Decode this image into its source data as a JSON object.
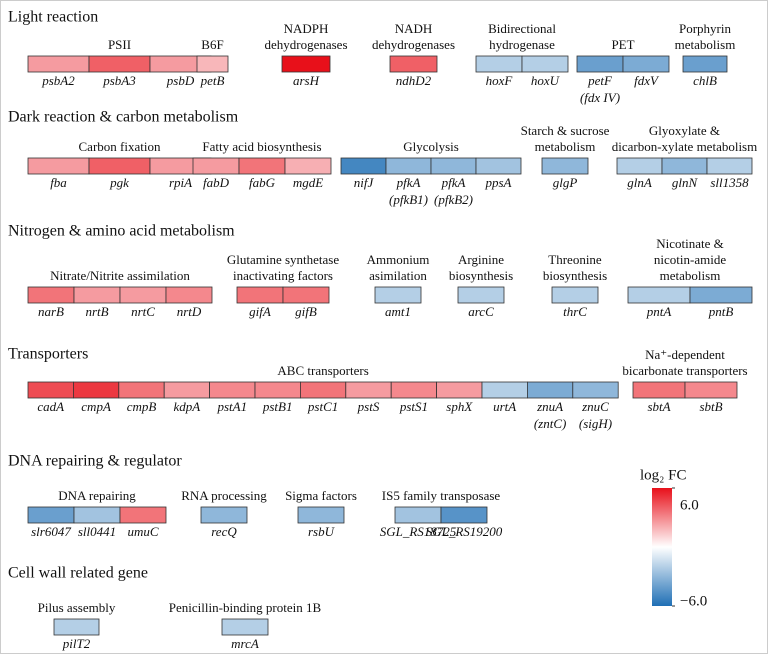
{
  "sections": [
    {
      "title": "Light reaction",
      "groups": [
        {
          "name": [
            "PSII"
          ],
          "genes": [
            {
              "label": "psbA2",
              "value": 2.5
            },
            {
              "label": "psbA3",
              "value": 4
            },
            {
              "label": "psbD",
              "value": 2.5
            }
          ]
        },
        {
          "name": [
            "B6F"
          ],
          "genes": [
            {
              "label": "petB",
              "value": 1.8
            }
          ]
        },
        {
          "name": [
            "NADPH",
            "dehydrogenases"
          ],
          "genes": [
            {
              "label": "arsH",
              "value": 6
            }
          ]
        },
        {
          "name": [
            "NADH",
            "dehydrogenases"
          ],
          "genes": [
            {
              "label": "ndhD2",
              "value": 4
            }
          ]
        },
        {
          "name": [
            "Bidirectional",
            "hydrogenase"
          ],
          "genes": [
            {
              "label": "hoxF",
              "value": -2
            },
            {
              "label": "hoxU",
              "value": -2
            }
          ]
        },
        {
          "name": [
            "PET"
          ],
          "genes": [
            {
              "label": "petF",
              "note": "(fdx IV)",
              "value": -4
            },
            {
              "label": "fdxV",
              "value": -3.5
            }
          ]
        },
        {
          "name": [
            "Porphyrin",
            "metabolism"
          ],
          "genes": [
            {
              "label": "chlB",
              "value": -4
            }
          ]
        }
      ]
    },
    {
      "title": "Dark reaction & carbon metabolism",
      "groups": [
        {
          "name": [
            "Carbon fixation"
          ],
          "genes": [
            {
              "label": "fba",
              "value": 2.5
            },
            {
              "label": "pgk",
              "value": 4
            },
            {
              "label": "rpiA",
              "value": 2.5
            }
          ]
        },
        {
          "name": [
            "Fatty acid biosynthesis"
          ],
          "genes": [
            {
              "label": "fabD",
              "value": 2.5
            },
            {
              "label": "fabG",
              "value": 3.5
            },
            {
              "label": "mgdE",
              "value": 2
            }
          ]
        },
        {
          "name": [
            "Glycolysis"
          ],
          "genes": [
            {
              "label": "nifJ",
              "value": -5
            },
            {
              "label": "pfkA",
              "note": "(pfkB1)",
              "value": -3
            },
            {
              "label": "pfkA",
              "note": "(pfkB2)",
              "value": -3
            },
            {
              "label": "ppsA",
              "value": -2.5
            }
          ]
        },
        {
          "name": [
            "Starch & sucrose",
            "metabolism"
          ],
          "genes": [
            {
              "label": "glgP",
              "value": -3
            }
          ]
        },
        {
          "name": [
            "Glyoxylate &",
            "dicarbon-xylate metabolism"
          ],
          "genes": [
            {
              "label": "glnA",
              "value": -2
            },
            {
              "label": "glnN",
              "value": -3
            },
            {
              "label": "sll1358",
              "value": -2
            }
          ]
        }
      ]
    },
    {
      "title": "Nitrogen & amino acid metabolism",
      "groups": [
        {
          "name": [
            "Nitrate/Nitrite assimilation"
          ],
          "genes": [
            {
              "label": "narB",
              "value": 3.5
            },
            {
              "label": "nrtB",
              "value": 2.5
            },
            {
              "label": "nrtC",
              "value": 2.5
            },
            {
              "label": "nrtD",
              "value": 3
            }
          ]
        },
        {
          "name": [
            "Glutamine synthetase",
            "inactivating factors"
          ],
          "genes": [
            {
              "label": "gifA",
              "value": 3.5
            },
            {
              "label": "gifB",
              "value": 3.5
            }
          ]
        },
        {
          "name": [
            "Ammonium",
            "asimilation"
          ],
          "genes": [
            {
              "label": "amt1",
              "value": -2
            }
          ]
        },
        {
          "name": [
            "Arginine",
            "biosynthesis"
          ],
          "genes": [
            {
              "label": "arcC",
              "value": -2
            }
          ]
        },
        {
          "name": [
            "Threonine",
            "biosynthesis"
          ],
          "genes": [
            {
              "label": "thrC",
              "value": -2
            }
          ]
        },
        {
          "name": [
            "Nicotinate &",
            "nicotin-amide",
            "metabolism"
          ],
          "genes": [
            {
              "label": "pntA",
              "value": -2
            },
            {
              "label": "pntB",
              "value": -3.5
            }
          ]
        }
      ]
    },
    {
      "title": "Transporters",
      "groups": [
        {
          "name": [
            "ABC transporters"
          ],
          "genes": [
            {
              "label": "cadA",
              "value": 4.5
            },
            {
              "label": "cmpA",
              "value": 5
            },
            {
              "label": "cmpB",
              "value": 3.5
            },
            {
              "label": "kdpA",
              "value": 2.5
            },
            {
              "label": "pstA1",
              "value": 3
            },
            {
              "label": "pstB1",
              "value": 3
            },
            {
              "label": "pstC1",
              "value": 3.5
            },
            {
              "label": "pstS",
              "value": 2.5
            },
            {
              "label": "pstS1",
              "value": 3
            },
            {
              "label": "sphX",
              "value": 2.5
            },
            {
              "label": "urtA",
              "value": -2
            },
            {
              "label": "znuA",
              "note": "(zntC)",
              "value": -3.5
            },
            {
              "label": "znuC",
              "note": "(sigH)",
              "value": -3
            }
          ]
        },
        {
          "name": [
            "Na⁺-dependent",
            "bicarbonate transporters"
          ],
          "genes": [
            {
              "label": "sbtA",
              "value": 3.5
            },
            {
              "label": "sbtB",
              "value": 3
            }
          ]
        }
      ]
    },
    {
      "title": "DNA repairing & regulator",
      "groups": [
        {
          "name": [
            "DNA repairing"
          ],
          "genes": [
            {
              "label": "slr6047",
              "value": -4
            },
            {
              "label": "sll0441",
              "value": -2.5
            },
            {
              "label": "umuC",
              "value": 3.5
            }
          ]
        },
        {
          "name": [
            "RNA processing"
          ],
          "genes": [
            {
              "label": "recQ",
              "value": -3
            }
          ]
        },
        {
          "name": [
            "Sigma factors"
          ],
          "genes": [
            {
              "label": "rsbU",
              "value": -3
            }
          ]
        },
        {
          "name": [
            "IS5 family transposase"
          ],
          "genes": [
            {
              "label": "SGL_RS18725",
              "value": -2.5
            },
            {
              "label": "SGL_RS19200",
              "value": -4.5
            }
          ]
        }
      ]
    },
    {
      "title": "Cell wall related gene",
      "groups": [
        {
          "name": [
            "Pilus assembly"
          ],
          "genes": [
            {
              "label": "pilT2",
              "value": -2
            }
          ]
        },
        {
          "name": [
            "Penicillin-binding protein 1B"
          ],
          "genes": [
            {
              "label": "mrcA",
              "value": -2
            }
          ]
        }
      ]
    }
  ],
  "colorbar": {
    "title": "log₂ FC",
    "lim": [
      -6,
      6
    ],
    "colors": [
      "#1f6fb5",
      "#ffffff",
      "#e8101a"
    ],
    "ticks": [
      {
        "value": 6,
        "label": "6.0"
      },
      {
        "value": -6,
        "label": "−6.0"
      }
    ]
  }
}
